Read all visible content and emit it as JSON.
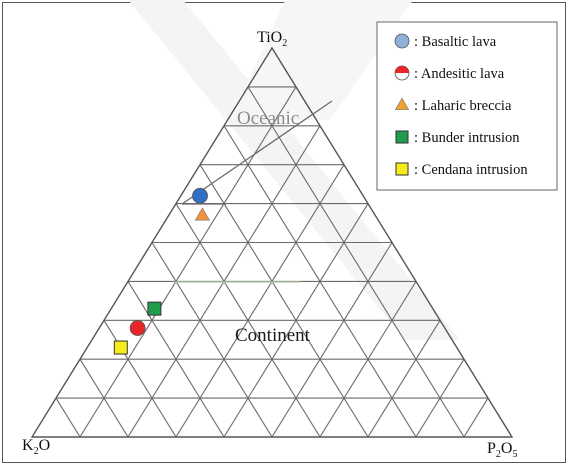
{
  "chart_data": {
    "type": "scatter",
    "subtype": "ternary",
    "vertices": {
      "top": {
        "label": "TiO",
        "subscript": "2"
      },
      "bottom_left": {
        "label": "K",
        "subscript": "2",
        "suffix": "O"
      },
      "bottom_right": {
        "label": "P",
        "subscript": "2",
        "suffix": "O",
        "suffix_subscript": "5"
      }
    },
    "grid_divisions": 10,
    "region_labels": [
      "Oceanic",
      "Continent"
    ],
    "legend_position": "top-right",
    "series": [
      {
        "name": ": Basaltic lava",
        "marker": "circle",
        "color": "#2f6fc4",
        "legend_color": "#8fb0d9",
        "points": [
          {
            "TiO2": 0.62,
            "K2O": 0.34,
            "P2O5": 0.04
          }
        ]
      },
      {
        "name": ": Andesitic lava",
        "marker": "circle",
        "color": "#e8262a",
        "legend_color": "#e8262a",
        "points": [
          {
            "TiO2": 0.28,
            "K2O": 0.64,
            "P2O5": 0.08
          }
        ]
      },
      {
        "name": ": Laharic breccia",
        "marker": "triangle",
        "color": "#f2923a",
        "legend_color": "#f0a030",
        "points": [
          {
            "TiO2": 0.57,
            "K2O": 0.36,
            "P2O5": 0.07
          }
        ]
      },
      {
        "name": ": Bunder intrusion",
        "marker": "square",
        "color": "#1e9e4c",
        "legend_color": "#1e9e4c",
        "points": [
          {
            "TiO2": 0.33,
            "K2O": 0.58,
            "P2O5": 0.09
          }
        ]
      },
      {
        "name": ": Cendana intrusion",
        "marker": "square",
        "color": "#f5ec1a",
        "legend_color": "#f5ec1a",
        "points": [
          {
            "TiO2": 0.23,
            "K2O": 0.7,
            "P2O5": 0.07
          }
        ]
      }
    ]
  }
}
